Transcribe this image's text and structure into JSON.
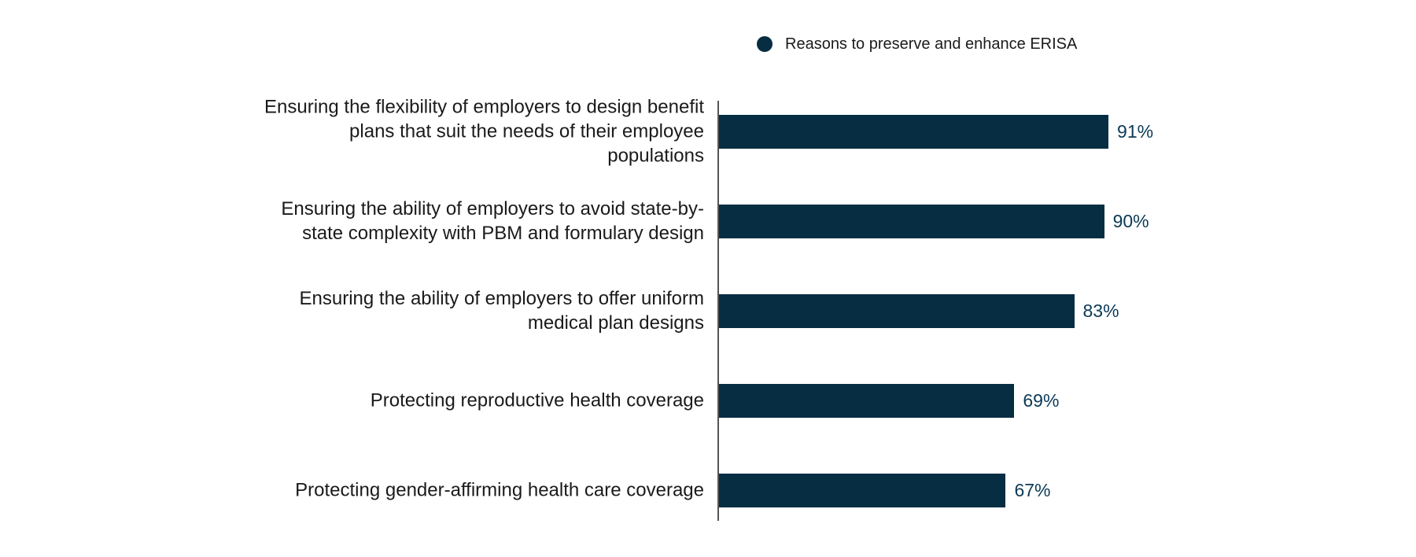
{
  "colors": {
    "bar": "#062d42",
    "value_text": "#0b3a56",
    "label_text": "#1a1a1a"
  },
  "legend": {
    "icon": "circle-icon",
    "label": "Reasons to preserve and enhance ERISA"
  },
  "chart_data": {
    "type": "bar",
    "orientation": "horizontal",
    "categories": [
      "Ensuring the flexibility of employers to design benefit plans that suit the needs of their employee populations",
      "Ensuring the ability of employers to avoid state-by-state complexity with PBM and formulary design",
      "Ensuring the ability of employers to offer uniform medical plan designs",
      "Protecting reproductive health coverage",
      "Protecting gender-affirming health care coverage"
    ],
    "series": [
      {
        "name": "Reasons to preserve and enhance ERISA",
        "values": [
          91,
          90,
          83,
          69,
          67
        ]
      }
    ],
    "value_labels": [
      "91%",
      "90%",
      "83%",
      "69%",
      "67%"
    ],
    "xlim": [
      0,
      100
    ],
    "grid": false,
    "legend_position": "top-center"
  }
}
